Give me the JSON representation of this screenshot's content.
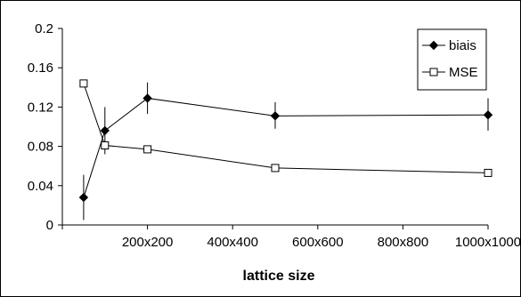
{
  "chart_data": {
    "type": "line",
    "xlabel": "lattice size",
    "ylabel": "",
    "x_values": [
      50,
      100,
      200,
      500,
      1000
    ],
    "x_range": [
      0,
      1000
    ],
    "x_ticks": [
      "",
      "200x200",
      "400x400",
      "600x600",
      "800x800",
      "1000x1000"
    ],
    "x_tick_values": [
      0,
      200,
      400,
      600,
      800,
      1000
    ],
    "y_range": [
      0,
      0.2
    ],
    "y_ticks": [
      "0",
      "0.04",
      "0.08",
      "0.12",
      "0.16",
      "0.2"
    ],
    "y_tick_values": [
      0,
      0.04,
      0.08,
      0.12,
      0.16,
      0.2
    ],
    "grid": false,
    "legend_position": "top-right",
    "series": [
      {
        "name": "biais",
        "marker": "diamond-filled",
        "color": "#000000",
        "values": [
          0.028,
          0.096,
          0.129,
          0.111,
          0.112
        ],
        "error_low": [
          0.005,
          0.072,
          0.113,
          0.098,
          0.096
        ],
        "error_high": [
          0.051,
          0.12,
          0.145,
          0.125,
          0.129
        ]
      },
      {
        "name": "MSE",
        "marker": "square-open",
        "color": "#000000",
        "values": [
          0.144,
          0.081,
          0.077,
          0.058,
          0.053
        ]
      }
    ]
  }
}
